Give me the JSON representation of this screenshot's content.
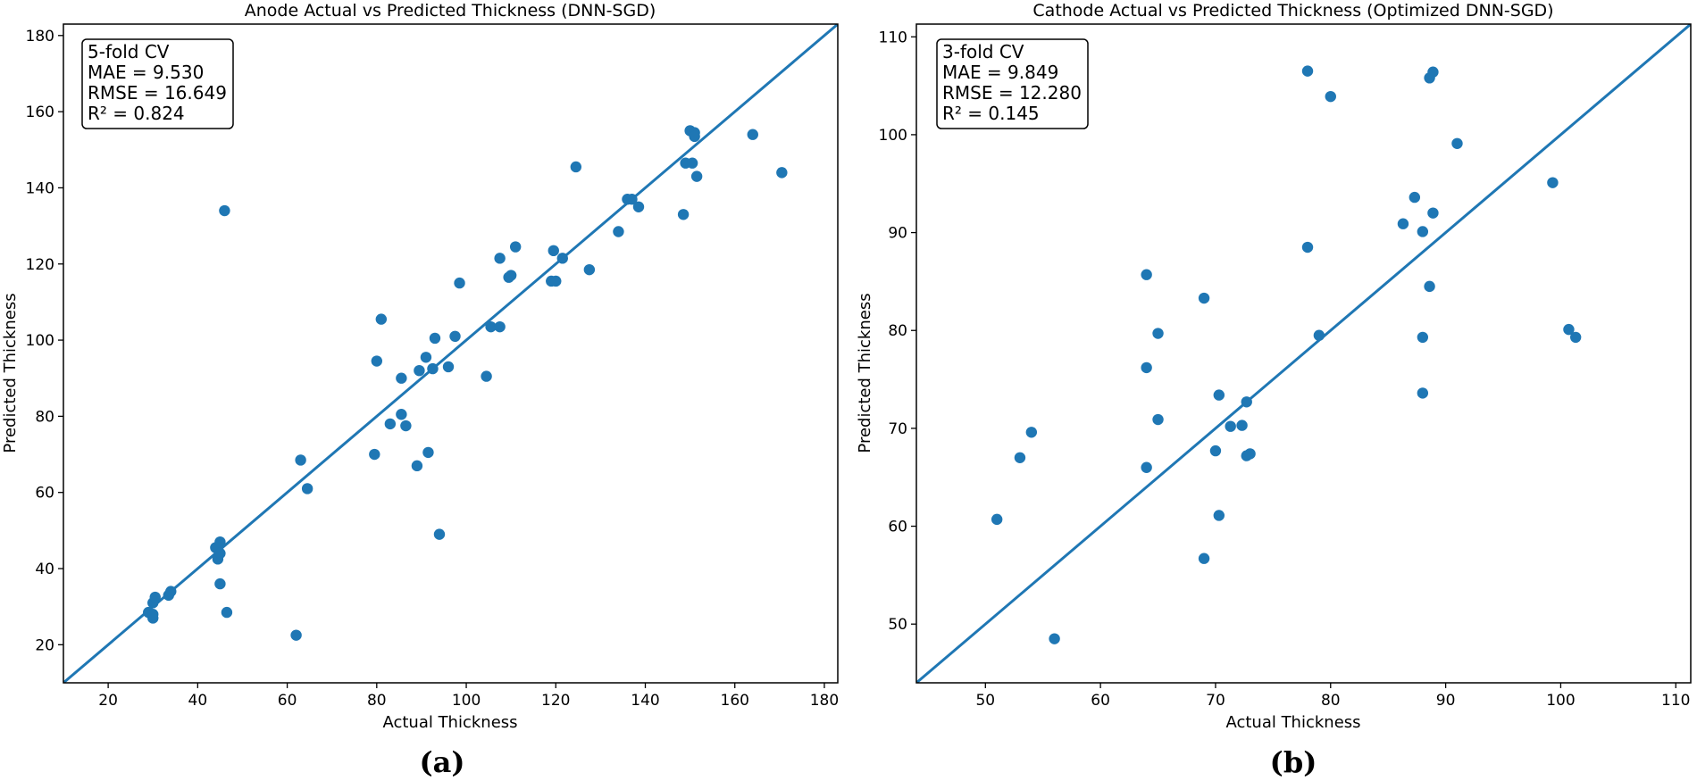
{
  "figure": {
    "panel_labels": [
      "(a)",
      "(b)"
    ]
  },
  "colors": {
    "point": "#1f77b4",
    "line": "#1f77b4",
    "axis": "#000000",
    "stats_box_edge": "#000000"
  },
  "chart_data": [
    {
      "type": "scatter",
      "title": "Anode Actual vs Predicted Thickness (DNN-SGD)",
      "xlabel": "Actual Thickness",
      "ylabel": "Predicted Thickness",
      "xlim": [
        10,
        183
      ],
      "ylim": [
        10,
        183
      ],
      "xticks": [
        20,
        40,
        60,
        80,
        100,
        120,
        140,
        160,
        180
      ],
      "yticks": [
        20,
        40,
        60,
        80,
        100,
        120,
        140,
        160,
        180
      ],
      "grid": false,
      "reference_line": "y = x",
      "stats_box": {
        "position": "top-left",
        "lines": [
          "5-fold CV",
          "MAE = 9.530",
          "RMSE = 16.649",
          "R² = 0.824"
        ]
      },
      "points": [
        [
          29,
          28.5
        ],
        [
          30,
          27
        ],
        [
          30,
          28
        ],
        [
          30,
          31
        ],
        [
          30.5,
          32.5
        ],
        [
          33.5,
          33
        ],
        [
          34,
          34
        ],
        [
          44,
          45.5
        ],
        [
          44.5,
          42.5
        ],
        [
          45,
          47
        ],
        [
          45,
          44
        ],
        [
          45,
          36
        ],
        [
          46,
          134
        ],
        [
          46.5,
          28.5
        ],
        [
          62,
          22.5
        ],
        [
          63,
          68.5
        ],
        [
          64.5,
          61
        ],
        [
          79.5,
          70
        ],
        [
          80,
          94.5
        ],
        [
          81,
          105.5
        ],
        [
          83,
          78
        ],
        [
          85.5,
          90
        ],
        [
          85.5,
          80.5
        ],
        [
          86.5,
          77.5
        ],
        [
          89,
          67
        ],
        [
          89.5,
          92
        ],
        [
          91,
          95.5
        ],
        [
          91.5,
          70.5
        ],
        [
          92.5,
          92.5
        ],
        [
          93,
          100.5
        ],
        [
          94,
          49
        ],
        [
          96,
          93
        ],
        [
          97.5,
          101
        ],
        [
          98.5,
          115
        ],
        [
          104.5,
          90.5
        ],
        [
          105.5,
          103.5
        ],
        [
          107.5,
          103.5
        ],
        [
          107.5,
          121.5
        ],
        [
          109.5,
          116.5
        ],
        [
          110,
          117
        ],
        [
          111,
          124.5
        ],
        [
          119,
          115.5
        ],
        [
          119.5,
          123.5
        ],
        [
          120,
          115.5
        ],
        [
          121.5,
          121.5
        ],
        [
          124.5,
          145.5
        ],
        [
          127.5,
          118.5
        ],
        [
          134,
          128.5
        ],
        [
          136,
          137
        ],
        [
          137,
          137
        ],
        [
          138.5,
          135
        ],
        [
          148.5,
          133
        ],
        [
          149,
          146.5
        ],
        [
          150,
          155
        ],
        [
          150.5,
          146.5
        ],
        [
          151,
          154.5
        ],
        [
          151,
          153.5
        ],
        [
          151.5,
          143
        ],
        [
          164,
          154
        ],
        [
          170.5,
          144
        ]
      ]
    },
    {
      "type": "scatter",
      "title": "Cathode Actual vs Predicted Thickness (Optimized DNN-SGD)",
      "xlabel": "Actual Thickness",
      "ylabel": "Predicted Thickness",
      "xlim": [
        44,
        111.3
      ],
      "ylim": [
        44,
        111.3
      ],
      "xticks": [
        50,
        60,
        70,
        80,
        90,
        100,
        110
      ],
      "yticks": [
        50,
        60,
        70,
        80,
        90,
        100,
        110
      ],
      "grid": false,
      "reference_line": "y = x",
      "stats_box": {
        "position": "top-left",
        "lines": [
          "3-fold CV",
          "MAE = 9.849",
          "RMSE = 12.280",
          "R² = 0.145"
        ]
      },
      "points": [
        [
          51,
          60.7
        ],
        [
          53,
          67
        ],
        [
          54,
          69.6
        ],
        [
          56,
          48.5
        ],
        [
          64,
          85.7
        ],
        [
          64,
          76.2
        ],
        [
          64,
          66
        ],
        [
          65,
          79.7
        ],
        [
          65,
          70.9
        ],
        [
          69,
          83.3
        ],
        [
          69,
          56.7
        ],
        [
          70,
          67.7
        ],
        [
          70.3,
          73.4
        ],
        [
          70.3,
          61.1
        ],
        [
          71.3,
          70.2
        ],
        [
          72.3,
          70.3
        ],
        [
          72.7,
          72.7
        ],
        [
          72.7,
          67.2
        ],
        [
          73,
          67.4
        ],
        [
          78,
          106.5
        ],
        [
          78,
          88.5
        ],
        [
          79,
          79.5
        ],
        [
          80,
          103.9
        ],
        [
          86.3,
          90.9
        ],
        [
          87.3,
          93.6
        ],
        [
          88,
          90.1
        ],
        [
          88,
          79.3
        ],
        [
          88,
          73.6
        ],
        [
          88.6,
          105.8
        ],
        [
          88.6,
          84.5
        ],
        [
          88.9,
          106.4
        ],
        [
          88.9,
          92
        ],
        [
          91,
          99.1
        ],
        [
          99.3,
          95.1
        ],
        [
          100.7,
          80.1
        ],
        [
          101.3,
          79.3
        ]
      ]
    }
  ]
}
